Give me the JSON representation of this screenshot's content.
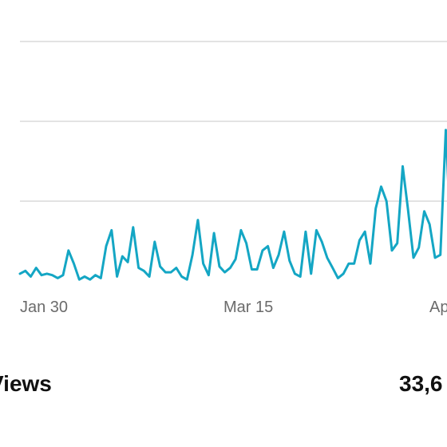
{
  "chart_data": {
    "type": "line",
    "color": "#14a6c4",
    "grid": true,
    "gridlines": 3,
    "ylim": [
      0,
      330
    ],
    "x_tick_labels": [
      "Jan 30",
      "Mar 15",
      "Apr"
    ],
    "series": [
      {
        "values": [
          10,
          14,
          6,
          18,
          8,
          10,
          8,
          4,
          8,
          42,
          24,
          2,
          6,
          2,
          8,
          4,
          48,
          70,
          6,
          34,
          26,
          74,
          18,
          14,
          6,
          54,
          20,
          12,
          12,
          18,
          6,
          2,
          36,
          84,
          24,
          8,
          66,
          20,
          12,
          18,
          30,
          70,
          52,
          16,
          16,
          42,
          48,
          18,
          36,
          68,
          28,
          10,
          6,
          68,
          10,
          70,
          54,
          32,
          18,
          4,
          10,
          24,
          24,
          56,
          68,
          24,
          100,
          130,
          110,
          42,
          52,
          158,
          98,
          32,
          46,
          96,
          78,
          32,
          36,
          208,
          50,
          30
        ]
      }
    ]
  },
  "stats": {
    "label": "Views",
    "value": "33,6"
  }
}
